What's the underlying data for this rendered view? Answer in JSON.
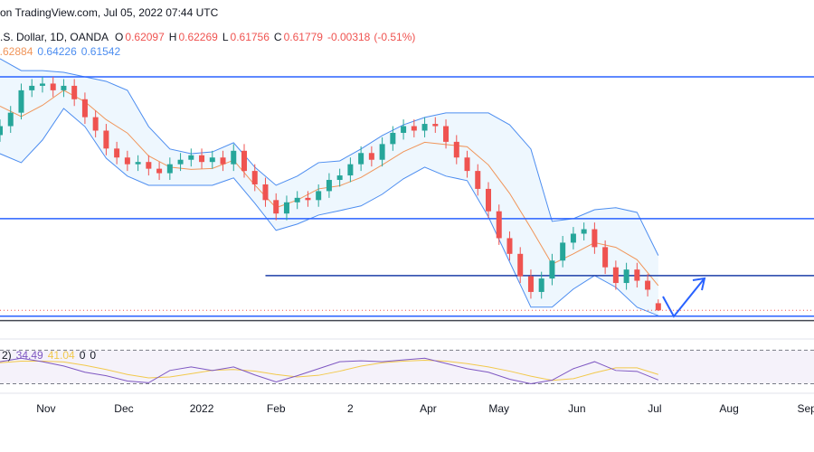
{
  "chart_data": {
    "type": "candlestick",
    "header": "on TradingView.com, Jul 05, 2022 07:44 UTC",
    "symbol": ".S. Dollar, 1D, OANDA",
    "ohlc_labels": [
      "O",
      "H",
      "L",
      "C"
    ],
    "change": -0.00318,
    "change_pct": "(-0.51%)",
    "up_color": "#26a69a",
    "down_color": "#ef5350",
    "xlim": [
      0,
      230
    ],
    "ylim": [
      0.605,
      0.745
    ],
    "xticks": [
      {
        "value": 13,
        "label": "Nov"
      },
      {
        "value": 35,
        "label": "Dec"
      },
      {
        "value": 57,
        "label": "2022"
      },
      {
        "value": 78,
        "label": "Feb"
      },
      {
        "value": 99,
        "label": "2"
      },
      {
        "value": 121,
        "label": "Apr"
      },
      {
        "value": 141,
        "label": "May"
      },
      {
        "value": 163,
        "label": "Jun"
      },
      {
        "value": 185,
        "label": "Jul"
      },
      {
        "value": 206,
        "label": "Aug"
      },
      {
        "value": 228,
        "label": "Sep"
      }
    ],
    "x": [
      0,
      3,
      6,
      9,
      12,
      15,
      18,
      21,
      24,
      27,
      30,
      33,
      36,
      39,
      42,
      45,
      48,
      51,
      54,
      57,
      60,
      63,
      66,
      69,
      72,
      75,
      78,
      81,
      84,
      87,
      90,
      93,
      96,
      99,
      102,
      105,
      108,
      111,
      114,
      117,
      120,
      123,
      126,
      129,
      132,
      135,
      138,
      141,
      144,
      147,
      150,
      153,
      156,
      159,
      162,
      165,
      168,
      171,
      174,
      177,
      180,
      183,
      186
    ],
    "open": [
      0.696,
      0.7,
      0.706,
      0.716,
      0.718,
      0.719,
      0.716,
      0.718,
      0.712,
      0.704,
      0.698,
      0.69,
      0.686,
      0.683,
      0.684,
      0.681,
      0.679,
      0.683,
      0.685,
      0.687,
      0.684,
      0.686,
      0.683,
      0.689,
      0.68,
      0.674,
      0.667,
      0.661,
      0.666,
      0.668,
      0.667,
      0.671,
      0.676,
      0.678,
      0.683,
      0.688,
      0.685,
      0.692,
      0.697,
      0.7,
      0.698,
      0.701,
      0.7,
      0.693,
      0.686,
      0.68,
      0.672,
      0.662,
      0.65,
      0.643,
      0.633,
      0.626,
      0.632,
      0.64,
      0.648,
      0.652,
      0.654,
      0.646,
      0.637,
      0.63,
      0.636,
      0.631,
      0.62097
    ],
    "high": [
      0.703,
      0.709,
      0.719,
      0.721,
      0.722,
      0.722,
      0.721,
      0.721,
      0.715,
      0.707,
      0.701,
      0.693,
      0.689,
      0.687,
      0.687,
      0.684,
      0.686,
      0.688,
      0.69,
      0.69,
      0.689,
      0.689,
      0.692,
      0.692,
      0.683,
      0.677,
      0.67,
      0.669,
      0.671,
      0.671,
      0.674,
      0.679,
      0.681,
      0.686,
      0.691,
      0.691,
      0.695,
      0.7,
      0.703,
      0.703,
      0.704,
      0.704,
      0.703,
      0.696,
      0.689,
      0.683,
      0.675,
      0.665,
      0.653,
      0.646,
      0.636,
      0.635,
      0.643,
      0.651,
      0.655,
      0.657,
      0.657,
      0.649,
      0.64,
      0.639,
      0.639,
      0.634,
      0.62269
    ],
    "low": [
      0.693,
      0.697,
      0.703,
      0.713,
      0.715,
      0.713,
      0.713,
      0.709,
      0.701,
      0.695,
      0.687,
      0.683,
      0.68,
      0.68,
      0.678,
      0.676,
      0.676,
      0.68,
      0.682,
      0.681,
      0.681,
      0.68,
      0.68,
      0.677,
      0.671,
      0.664,
      0.658,
      0.658,
      0.663,
      0.664,
      0.664,
      0.668,
      0.673,
      0.675,
      0.68,
      0.682,
      0.682,
      0.689,
      0.694,
      0.695,
      0.695,
      0.697,
      0.69,
      0.683,
      0.677,
      0.669,
      0.659,
      0.647,
      0.64,
      0.63,
      0.623,
      0.623,
      0.629,
      0.637,
      0.645,
      0.649,
      0.643,
      0.634,
      0.627,
      0.627,
      0.628,
      0.624,
      0.61756
    ],
    "close": [
      0.7,
      0.706,
      0.716,
      0.718,
      0.719,
      0.716,
      0.718,
      0.712,
      0.704,
      0.698,
      0.69,
      0.686,
      0.683,
      0.684,
      0.681,
      0.679,
      0.683,
      0.685,
      0.687,
      0.684,
      0.686,
      0.683,
      0.689,
      0.68,
      0.674,
      0.667,
      0.661,
      0.666,
      0.668,
      0.667,
      0.671,
      0.676,
      0.678,
      0.683,
      0.688,
      0.685,
      0.692,
      0.697,
      0.7,
      0.698,
      0.701,
      0.7,
      0.693,
      0.686,
      0.68,
      0.672,
      0.662,
      0.65,
      0.643,
      0.633,
      0.626,
      0.632,
      0.64,
      0.648,
      0.652,
      0.654,
      0.646,
      0.637,
      0.63,
      0.636,
      0.631,
      0.627,
      0.61779
    ],
    "levels": [
      {
        "value": 0.722,
        "color": "#2962ff"
      },
      {
        "value": 0.6587,
        "color": "#2962ff"
      },
      {
        "value": 0.6333,
        "color": "#1e3fa8",
        "x_start": 75
      },
      {
        "value": 0.6152,
        "color": "#2962ff"
      },
      {
        "value": 0.6132,
        "color": "#434651"
      }
    ],
    "bb": {
      "basis_color": "#f0955a",
      "band_color": "#4c8df0",
      "x": [
        0,
        6,
        12,
        18,
        24,
        30,
        36,
        42,
        48,
        54,
        60,
        66,
        72,
        78,
        84,
        90,
        96,
        102,
        108,
        114,
        120,
        126,
        132,
        138,
        144,
        150,
        156,
        162,
        168,
        174,
        180,
        186
      ],
      "basis": [
        0.7089,
        0.7043,
        0.7093,
        0.716,
        0.7109,
        0.7029,
        0.6969,
        0.6867,
        0.6817,
        0.6807,
        0.6811,
        0.6848,
        0.6737,
        0.6636,
        0.667,
        0.672,
        0.6734,
        0.6771,
        0.6827,
        0.6886,
        0.6928,
        0.6918,
        0.6908,
        0.6827,
        0.67,
        0.6545,
        0.6384,
        0.643,
        0.648,
        0.6459,
        0.6404,
        0.62884
      ],
      "upper": [
        0.7301,
        0.7248,
        0.7248,
        0.724,
        0.722,
        0.72,
        0.716,
        0.6998,
        0.6898,
        0.6877,
        0.6885,
        0.6926,
        0.6817,
        0.6736,
        0.6777,
        0.6837,
        0.6845,
        0.6898,
        0.6958,
        0.7006,
        0.7039,
        0.7059,
        0.7059,
        0.7059,
        0.7006,
        0.6898,
        0.6575,
        0.6587,
        0.6627,
        0.6636,
        0.6615,
        0.64226
      ],
      "lower": [
        0.6877,
        0.6837,
        0.6938,
        0.7079,
        0.6998,
        0.6857,
        0.6777,
        0.6736,
        0.6736,
        0.6736,
        0.6736,
        0.6769,
        0.6656,
        0.6535,
        0.6563,
        0.6603,
        0.6623,
        0.6644,
        0.6696,
        0.6765,
        0.6817,
        0.6777,
        0.6757,
        0.6595,
        0.6394,
        0.6192,
        0.6192,
        0.6273,
        0.6333,
        0.6281,
        0.6192,
        0.61542
      ]
    },
    "rsi": {
      "label": "2)",
      "color": "#7e57c2",
      "ma_color": "#f2c94c",
      "ylim": [
        24,
        78
      ],
      "bands": [
        30,
        70
      ],
      "others": [
        0,
        0
      ],
      "x": [
        0,
        6,
        12,
        18,
        24,
        30,
        36,
        42,
        48,
        54,
        60,
        66,
        72,
        78,
        84,
        90,
        96,
        102,
        108,
        114,
        120,
        126,
        132,
        138,
        144,
        150,
        156,
        162,
        168,
        174,
        180,
        186
      ],
      "values": [
        56.3,
        60.5,
        56.3,
        51.1,
        43.7,
        39.5,
        33.2,
        31.1,
        45.8,
        50.0,
        45.8,
        50.0,
        40.5,
        32.1,
        39.5,
        47.9,
        56.3,
        57.4,
        56.3,
        58.4,
        60.5,
        54.2,
        47.9,
        43.7,
        35.3,
        30.0,
        34.2,
        47.9,
        56.3,
        45.8,
        44.7,
        34.49
      ],
      "ma": [
        55,
        57,
        57,
        56,
        52,
        47,
        41,
        37,
        38,
        42,
        46,
        47,
        45,
        41,
        38,
        40,
        45,
        51,
        55,
        57,
        58,
        57,
        54,
        50,
        45,
        39,
        34,
        36,
        43,
        49,
        49,
        41.04
      ]
    }
  }
}
